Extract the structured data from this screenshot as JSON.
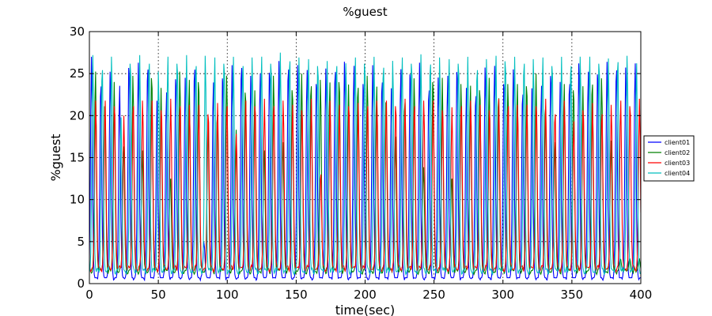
{
  "chart_data": {
    "type": "line",
    "title": "%guest",
    "xlabel": "time(sec)",
    "ylabel": "%guest",
    "xlim": [
      0,
      400
    ],
    "ylim": [
      0,
      30
    ],
    "xticks": [
      0,
      50,
      100,
      150,
      200,
      250,
      300,
      350,
      400
    ],
    "yticks": [
      0,
      5,
      10,
      15,
      20,
      25,
      30
    ],
    "grid": true,
    "legend_position": "right",
    "period": 6.8,
    "series": [
      {
        "name": "client01",
        "color": "#0000ff",
        "baseline": 0.8,
        "phase": 1.5,
        "peaks": [
          27.0,
          24.5,
          25.5,
          23.8,
          26.8,
          26.3,
          26.6,
          22.0,
          23.0,
          25.4,
          24.5,
          26.6,
          5.0,
          24.2,
          25.5,
          26.0,
          26.8,
          25.0,
          25.3,
          26.2,
          26.5,
          26.6,
          26.3,
          25.7,
          24.8,
          25.6,
          26.3,
          26.7,
          26.2,
          24.8,
          26.0,
          25.0,
          23.5,
          25.8,
          26.0,
          26.3,
          24.0,
          24.8,
          25.0,
          26.3,
          23.3,
          23.3,
          26.0,
          26.2,
          24.8,
          25.5,
          23.5,
          23.5,
          23.8,
          25.8,
          24.0,
          24.8,
          26.5,
          25.5,
          26.0,
          26.4,
          26.5,
          26.0,
          26.5
        ]
      },
      {
        "name": "client02",
        "color": "#008000",
        "baseline": 1.5,
        "phase": 4.4,
        "peaks": [
          25.5,
          22.0,
          24.0,
          17.0,
          25.0,
          16.0,
          25.5,
          23.3,
          13.0,
          25.5,
          24.5,
          25.0,
          20.0,
          21.0,
          25.0,
          18.5,
          23.7,
          23.0,
          16.5,
          25.0,
          17.0,
          24.0,
          25.0,
          24.5,
          24.5,
          24.2,
          25.0,
          23.7,
          24.3,
          25.0,
          23.7,
          22.5,
          17.5,
          22.5,
          24.7,
          14.0,
          25.0,
          24.5,
          13.0,
          24.0,
          23.8,
          24.0,
          24.5,
          23.0,
          24.0,
          24.0,
          24.5,
          25.0,
          22.0,
          17.0,
          24.0,
          24.0,
          23.5,
          24.7,
          24.7,
          17.2,
          3.0,
          3.0,
          3.0
        ]
      },
      {
        "name": "client03",
        "color": "#ff0000",
        "baseline": 1.8,
        "phase": 4.6,
        "peaks": [
          22.0,
          22.0,
          22.0,
          20.0,
          22.0,
          22.0,
          22.0,
          21.5,
          22.0,
          22.0,
          21.5,
          21.5,
          21.0,
          21.5,
          22.0,
          18.0,
          22.0,
          22.0,
          22.0,
          22.0,
          22.0,
          21.5,
          21.5,
          22.0,
          13.5,
          22.0,
          21.5,
          22.0,
          21.5,
          22.0,
          22.0,
          22.0,
          22.0,
          22.0,
          22.0,
          22.0,
          22.0,
          21.5,
          21.0,
          22.0,
          22.0,
          21.5,
          21.5,
          22.0,
          22.0,
          21.5,
          21.5,
          22.0,
          22.0,
          21.0,
          22.0,
          19.5,
          21.5,
          21.5,
          21.0,
          21.5,
          22.0,
          22.0,
          22.0
        ]
      },
      {
        "name": "client04",
        "color": "#00bfbf",
        "baseline": 1.5,
        "phase": 2.5,
        "peaks": [
          27.2,
          26.5,
          27.3,
          20.0,
          27.3,
          27.2,
          27.3,
          25.5,
          27.3,
          27.3,
          27.2,
          27.0,
          27.4,
          27.2,
          27.3,
          27.0,
          27.0,
          27.2,
          27.3,
          27.3,
          27.5,
          27.6,
          27.2,
          27.0,
          27.0,
          26.5,
          27.0,
          26.5,
          27.2,
          27.3,
          27.0,
          26.8,
          26.8,
          27.2,
          27.3,
          27.3,
          27.2,
          27.2,
          27.0,
          27.3,
          27.0,
          26.5,
          27.0,
          27.4,
          27.6,
          27.0,
          27.3,
          27.0,
          27.2,
          27.0,
          27.0,
          27.0,
          27.3,
          27.3,
          27.3,
          26.8,
          27.5,
          27.4,
          26.5
        ]
      }
    ]
  }
}
